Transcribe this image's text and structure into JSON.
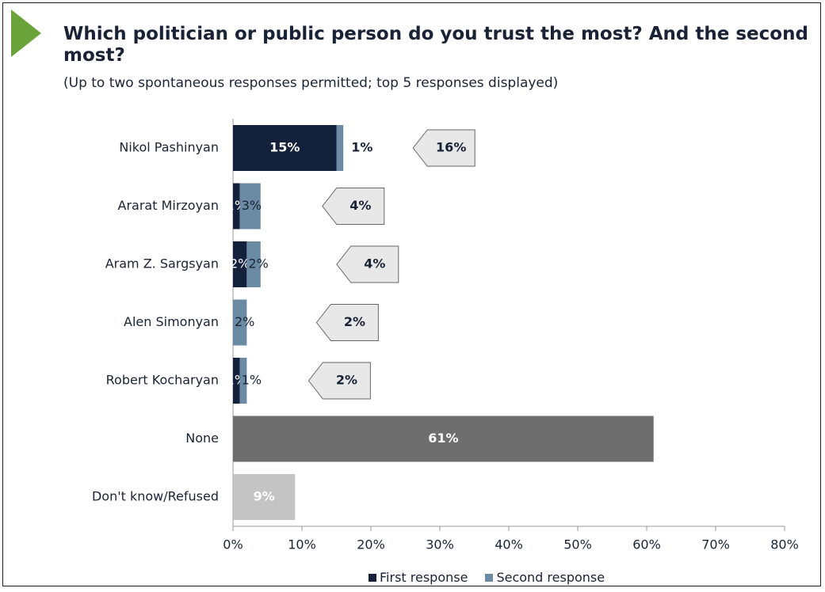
{
  "header": {
    "title": "Which politician or public person do you trust the most? And the second most?",
    "subtitle": "(Up to two spontaneous responses permitted; top 5 responses displayed)"
  },
  "colors": {
    "first": "#14213d",
    "second": "#6b8ba4",
    "none": "#6e6e6e",
    "dk": "#c4c4c4",
    "callout_fill": "#e8e8e8"
  },
  "chart_data": {
    "type": "bar",
    "orientation": "horizontal",
    "stacked": true,
    "categories": [
      "Nikol Pashinyan",
      "Ararat Mirzoyan",
      "Aram Z. Sargsyan",
      "Alen Simonyan",
      "Robert Kocharyan",
      "None",
      "Don't know/Refused"
    ],
    "series": [
      {
        "name": "First response",
        "values": [
          15,
          1,
          2,
          0,
          1,
          null,
          null
        ],
        "labels": [
          "15%",
          "1%",
          "2%",
          "",
          "1%",
          "",
          ""
        ]
      },
      {
        "name": "Second response",
        "values": [
          1,
          3,
          2,
          2,
          1,
          null,
          null
        ],
        "labels": [
          "1%",
          "3%",
          "2%",
          "2%",
          "1%",
          "",
          ""
        ]
      },
      {
        "name": "",
        "values": [
          null,
          null,
          null,
          null,
          null,
          61,
          null
        ],
        "labels": [
          "",
          "",
          "",
          "",
          "",
          "61%",
          ""
        ]
      },
      {
        "name": "",
        "values": [
          null,
          null,
          null,
          null,
          null,
          null,
          9
        ],
        "labels": [
          "",
          "",
          "",
          "",
          "",
          "",
          "9%"
        ]
      }
    ],
    "totals": [
      16,
      4,
      4,
      2,
      2,
      null,
      null
    ],
    "total_labels": [
      "16%",
      "4%",
      "4%",
      "2%",
      "2%",
      "",
      ""
    ],
    "xlim": [
      0,
      80
    ],
    "x_ticks": [
      "0%",
      "10%",
      "20%",
      "30%",
      "40%",
      "50%",
      "60%",
      "70%",
      "80%"
    ],
    "legend": {
      "position": "bottom",
      "entries": [
        "First response",
        "Second response"
      ]
    }
  }
}
